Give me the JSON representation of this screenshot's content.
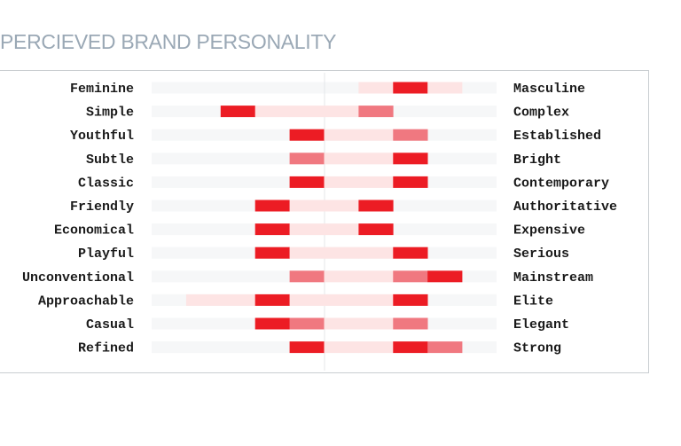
{
  "page_title": "PERCIEVED BRAND PERSONALITY",
  "colors": {
    "title": "#9aa8b5",
    "track": "#f6f7f8",
    "range": "#fde4e4",
    "mid": "#f07880",
    "strong": "#ec1c24"
  },
  "chart_data": {
    "type": "range-bar",
    "title": "PERCIEVED BRAND PERSONALITY",
    "scale": [
      -5,
      5
    ],
    "cell_legend": {
      "0": "none",
      "1": "range",
      "2": "mid",
      "3": "strong"
    },
    "rows": [
      {
        "left": "Feminine",
        "right": "Masculine",
        "cells": [
          0,
          0,
          0,
          0,
          0,
          0,
          1,
          3,
          1,
          0
        ]
      },
      {
        "left": "Simple",
        "right": "Complex",
        "cells": [
          0,
          0,
          3,
          1,
          1,
          1,
          2,
          0,
          0,
          0
        ]
      },
      {
        "left": "Youthful",
        "right": "Established",
        "cells": [
          0,
          0,
          0,
          0,
          3,
          1,
          1,
          2,
          0,
          0
        ]
      },
      {
        "left": "Subtle",
        "right": "Bright",
        "cells": [
          0,
          0,
          0,
          0,
          2,
          1,
          1,
          3,
          0,
          0
        ]
      },
      {
        "left": "Classic",
        "right": "Contemporary",
        "cells": [
          0,
          0,
          0,
          0,
          3,
          1,
          1,
          3,
          0,
          0
        ]
      },
      {
        "left": "Friendly",
        "right": "Authoritative",
        "cells": [
          0,
          0,
          0,
          3,
          1,
          1,
          3,
          0,
          0,
          0
        ]
      },
      {
        "left": "Economical",
        "right": "Expensive",
        "cells": [
          0,
          0,
          0,
          3,
          1,
          1,
          3,
          0,
          0,
          0
        ]
      },
      {
        "left": "Playful",
        "right": "Serious",
        "cells": [
          0,
          0,
          0,
          3,
          1,
          1,
          1,
          3,
          0,
          0
        ]
      },
      {
        "left": "Unconventional",
        "right": "Mainstream",
        "cells": [
          0,
          0,
          0,
          0,
          2,
          1,
          1,
          2,
          3,
          0
        ]
      },
      {
        "left": "Approachable",
        "right": "Elite",
        "cells": [
          0,
          1,
          1,
          3,
          1,
          1,
          1,
          3,
          0,
          0
        ]
      },
      {
        "left": "Casual",
        "right": "Elegant",
        "cells": [
          0,
          0,
          0,
          3,
          2,
          1,
          1,
          2,
          0,
          0
        ]
      },
      {
        "left": "Refined",
        "right": "Strong",
        "cells": [
          0,
          0,
          0,
          0,
          3,
          1,
          1,
          3,
          2,
          0
        ]
      }
    ]
  }
}
